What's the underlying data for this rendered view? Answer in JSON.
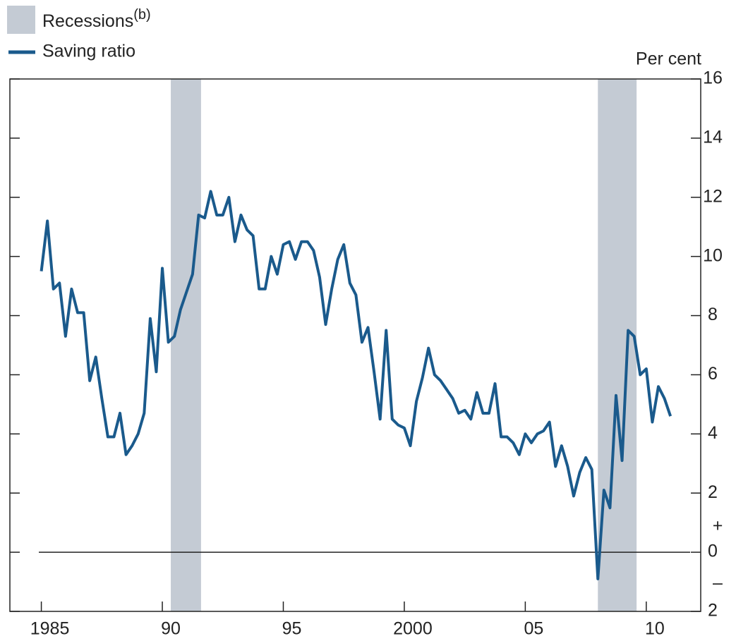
{
  "chart_data": {
    "type": "line",
    "y_axis_label": "Per cent",
    "legend": {
      "recession_label": "Recessions",
      "recession_note": "(b)"
    },
    "annotations": [
      "+",
      "–"
    ],
    "recession_color": "#c4cbd4",
    "recessions": [
      [
        1990.35,
        1991.6
      ],
      [
        2008.0,
        2009.6
      ]
    ],
    "xlim": [
      1983.7,
      2012.25
    ],
    "xticks": [
      {
        "value": 1985,
        "label": "1985"
      },
      {
        "value": 1990,
        "label": "90"
      },
      {
        "value": 1995,
        "label": "95"
      },
      {
        "value": 2000,
        "label": "2000"
      },
      {
        "value": 2005,
        "label": "05"
      },
      {
        "value": 2010,
        "label": "10"
      }
    ],
    "ylim": [
      -2,
      16
    ],
    "yticks": [
      {
        "value": -2,
        "label": "2"
      },
      0,
      2,
      4,
      6,
      8,
      10,
      12,
      14,
      16
    ],
    "grid": false,
    "x": [
      1985,
      1985.25,
      1985.5,
      1985.75,
      1986,
      1986.25,
      1986.5,
      1986.75,
      1987,
      1987.25,
      1987.5,
      1987.75,
      1988,
      1988.25,
      1988.5,
      1988.75,
      1989,
      1989.25,
      1989.5,
      1989.75,
      1990,
      1990.25,
      1990.5,
      1990.75,
      1991,
      1991.25,
      1991.5,
      1991.75,
      1992,
      1992.25,
      1992.5,
      1992.75,
      1993,
      1993.25,
      1993.5,
      1993.75,
      1994,
      1994.25,
      1994.5,
      1994.75,
      1995,
      1995.25,
      1995.5,
      1995.75,
      1996,
      1996.25,
      1996.5,
      1996.75,
      1997,
      1997.25,
      1997.5,
      1997.75,
      1998,
      1998.25,
      1998.5,
      1998.75,
      1999,
      1999.25,
      1999.5,
      1999.75,
      2000,
      2000.25,
      2000.5,
      2000.75,
      2001,
      2001.25,
      2001.5,
      2001.75,
      2002,
      2002.25,
      2002.5,
      2002.75,
      2003,
      2003.25,
      2003.5,
      2003.75,
      2004,
      2004.25,
      2004.5,
      2004.75,
      2005,
      2005.25,
      2005.5,
      2005.75,
      2006,
      2006.25,
      2006.5,
      2006.75,
      2007,
      2007.25,
      2007.5,
      2007.75,
      2008,
      2008.25,
      2008.5,
      2008.75,
      2009,
      2009.25,
      2009.5,
      2009.75,
      2010,
      2010.25,
      2010.5,
      2010.75,
      2011
    ],
    "series": [
      {
        "name": "Saving ratio",
        "color": "#1a5a8c",
        "values": [
          9.5,
          11.2,
          8.9,
          9.1,
          7.3,
          8.9,
          8.1,
          8.1,
          5.8,
          6.6,
          5.2,
          3.9,
          3.9,
          4.7,
          3.3,
          3.6,
          4.0,
          4.7,
          7.9,
          6.1,
          9.6,
          7.1,
          7.3,
          8.2,
          8.8,
          9.4,
          11.4,
          11.3,
          12.2,
          11.4,
          11.4,
          12.0,
          10.5,
          11.4,
          10.9,
          10.7,
          8.9,
          8.9,
          10.0,
          9.4,
          10.4,
          10.5,
          9.9,
          10.5,
          10.5,
          10.2,
          9.3,
          7.7,
          8.9,
          9.9,
          10.4,
          9.1,
          8.7,
          7.1,
          7.6,
          6.1,
          4.5,
          7.5,
          4.5,
          4.3,
          4.2,
          3.6,
          5.1,
          5.9,
          6.9,
          6.0,
          5.8,
          5.5,
          5.2,
          4.7,
          4.8,
          4.5,
          5.4,
          4.7,
          4.7,
          5.7,
          3.9,
          3.9,
          3.7,
          3.3,
          4.0,
          3.7,
          4.0,
          4.1,
          4.4,
          2.9,
          3.6,
          2.9,
          1.9,
          2.7,
          3.2,
          2.8,
          -0.9,
          2.1,
          1.5,
          5.3,
          3.1,
          7.5,
          7.3,
          6.0,
          6.2,
          4.4,
          5.6,
          5.2,
          4.6
        ]
      }
    ]
  }
}
